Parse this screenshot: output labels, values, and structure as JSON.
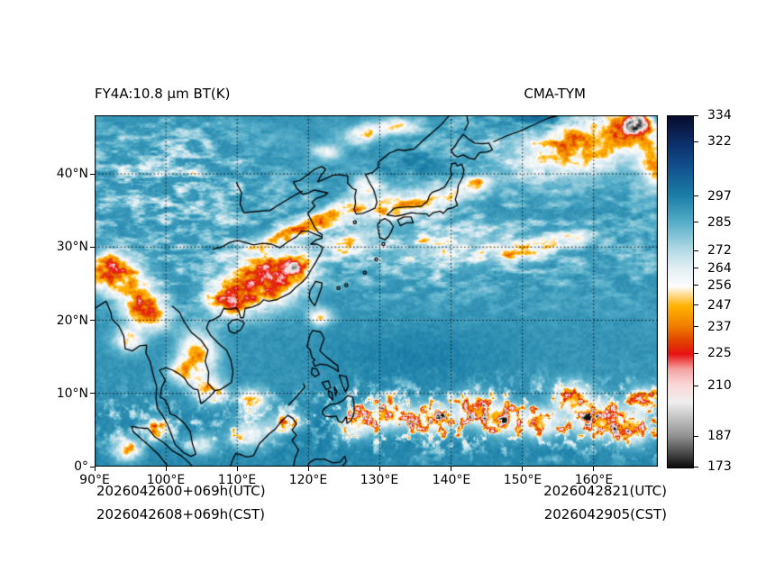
{
  "figure": {
    "title_left": "FY4A:10.8 μm BT(K)",
    "title_right": "CMA-TYM"
  },
  "axes": {
    "x_ticks": [
      "90°E",
      "100°E",
      "110°E",
      "120°E",
      "130°E",
      "140°E",
      "150°E",
      "160°E"
    ],
    "y_ticks": [
      "40°N",
      "30°N",
      "20°N",
      "10°N",
      "0°"
    ]
  },
  "footer": {
    "init_utc": "2026042600+069h(UTC)",
    "init_cst": "2026042608+069h(CST)",
    "valid_utc": "2026042821(UTC)",
    "valid_cst": "2026042905(CST)"
  },
  "colorbar": {
    "tick_labels": [
      "334",
      "322",
      "297",
      "285",
      "272",
      "264",
      "256",
      "247",
      "237",
      "225",
      "210",
      "187",
      "173"
    ]
  },
  "chart_data": {
    "type": "heatmap",
    "title": "FY4A:10.8 μm BT(K)",
    "satellite": "FY4A",
    "channel": "10.8 μm",
    "model": "CMA-TYM",
    "units": "K",
    "lon_range": [
      90,
      169
    ],
    "lat_range": [
      0,
      48
    ],
    "x_ticks_deg_east": [
      90,
      100,
      110,
      120,
      130,
      140,
      150,
      160
    ],
    "y_ticks_deg_north": [
      0,
      10,
      20,
      30,
      40
    ],
    "value_range": [
      173,
      334
    ],
    "colorbar_ticks": [
      334,
      322,
      297,
      285,
      272,
      264,
      256,
      247,
      237,
      225,
      210,
      187,
      173
    ],
    "grid": true,
    "background_bt_k": 292,
    "colormap_stops": [
      [
        173,
        "#0b0b0b"
      ],
      [
        187,
        "#8e8e8e"
      ],
      [
        203,
        "#f0eeee"
      ],
      [
        211,
        "#fbd7d7"
      ],
      [
        218,
        "#f3a3a3"
      ],
      [
        225,
        "#e81111"
      ],
      [
        231,
        "#e04300"
      ],
      [
        237,
        "#ef7800"
      ],
      [
        247,
        "#ffb300"
      ],
      [
        253,
        "#ffe2a8"
      ],
      [
        256,
        "#fdfdfd"
      ],
      [
        264,
        "#e3eff4"
      ],
      [
        272,
        "#b7dce7"
      ],
      [
        285,
        "#57afc9"
      ],
      [
        297,
        "#1c80a8"
      ],
      [
        310,
        "#12528e"
      ],
      [
        322,
        "#0c2d68"
      ],
      [
        334,
        "#070c2b"
      ]
    ],
    "cold_cloud_features": [
      [
        92.5,
        26.5,
        3.6,
        2.6,
        0,
        70
      ],
      [
        96.5,
        23.0,
        2.6,
        2.0,
        0,
        50
      ],
      [
        97.5,
        20.5,
        2.8,
        2.0,
        0,
        52
      ],
      [
        94.8,
        17.3,
        2.0,
        1.6,
        0,
        45
      ],
      [
        109.2,
        22.8,
        3.2,
        2.4,
        0,
        56
      ],
      [
        114.5,
        25.6,
        4.8,
        3.4,
        10,
        74
      ],
      [
        118.3,
        27.3,
        2.4,
        1.8,
        20,
        46
      ],
      [
        120.0,
        33.0,
        8.5,
        1.25,
        23,
        56
      ],
      [
        134.0,
        35.8,
        7.5,
        1.8,
        12,
        50
      ],
      [
        128.2,
        38.6,
        2.0,
        1.2,
        0,
        38
      ],
      [
        158.0,
        44.0,
        9.0,
        4.0,
        8,
        54
      ],
      [
        165.5,
        46.5,
        3.0,
        2.0,
        0,
        70
      ],
      [
        166.5,
        47.3,
        1.5,
        1.0,
        0,
        60
      ],
      [
        168.5,
        41.5,
        2.0,
        3.5,
        0,
        48
      ],
      [
        150.5,
        29.5,
        4.0,
        1.3,
        8,
        44
      ],
      [
        157.5,
        31.2,
        3.0,
        1.0,
        5,
        40
      ],
      [
        140.0,
        30.0,
        9.0,
        2.6,
        5,
        22
      ],
      [
        126.0,
        30.5,
        4.0,
        1.6,
        15,
        32
      ],
      [
        104.5,
        15.5,
        2.6,
        3.2,
        0,
        50
      ],
      [
        106.2,
        10.5,
        2.4,
        1.8,
        0,
        48
      ],
      [
        102.0,
        13.0,
        1.8,
        1.5,
        0,
        40
      ],
      [
        112.5,
        9.0,
        2.0,
        1.6,
        0,
        42
      ],
      [
        121.5,
        20.5,
        1.6,
        1.2,
        0,
        42
      ],
      [
        126.5,
        5.5,
        2.4,
        1.8,
        0,
        48
      ],
      [
        131.0,
        7.0,
        3.0,
        2.0,
        0,
        58
      ],
      [
        137.5,
        6.5,
        3.0,
        2.0,
        0,
        55
      ],
      [
        143.0,
        8.0,
        2.6,
        2.0,
        0,
        50
      ],
      [
        147.0,
        6.5,
        3.0,
        2.2,
        0,
        55
      ],
      [
        152.5,
        6.0,
        3.0,
        2.0,
        0,
        55
      ],
      [
        157.0,
        9.5,
        2.6,
        2.0,
        0,
        50
      ],
      [
        160.5,
        6.5,
        3.4,
        2.5,
        0,
        60
      ],
      [
        165.5,
        5.0,
        2.6,
        2.0,
        0,
        55
      ],
      [
        167.0,
        9.0,
        2.2,
        1.8,
        0,
        50
      ],
      [
        112.0,
        4.5,
        3.0,
        1.8,
        0,
        46
      ],
      [
        117.0,
        6.0,
        2.4,
        1.5,
        0,
        42
      ],
      [
        99.0,
        5.0,
        2.0,
        1.5,
        0,
        40
      ],
      [
        94.5,
        2.5,
        2.0,
        1.6,
        0,
        45
      ],
      [
        105.0,
        3.0,
        2.0,
        1.4,
        0,
        38
      ],
      [
        128.0,
        45.5,
        3.0,
        1.2,
        10,
        44
      ],
      [
        133.0,
        46.5,
        2.5,
        1.0,
        0,
        40
      ],
      [
        122.5,
        43.0,
        2.0,
        1.0,
        0,
        34
      ],
      [
        143.5,
        38.5,
        2.2,
        1.1,
        10,
        40
      ]
    ],
    "warm_features": [
      [
        152.5,
        47.2,
        4.5,
        1.8,
        0,
        22
      ],
      [
        168.0,
        47.5,
        2.2,
        1.5,
        0,
        20
      ],
      [
        134.5,
        41.0,
        4.0,
        2.0,
        0,
        6
      ],
      [
        135.0,
        15.0,
        12.0,
        4.0,
        0,
        5
      ],
      [
        120.0,
        5.0,
        10.0,
        3.0,
        0,
        4
      ]
    ]
  }
}
